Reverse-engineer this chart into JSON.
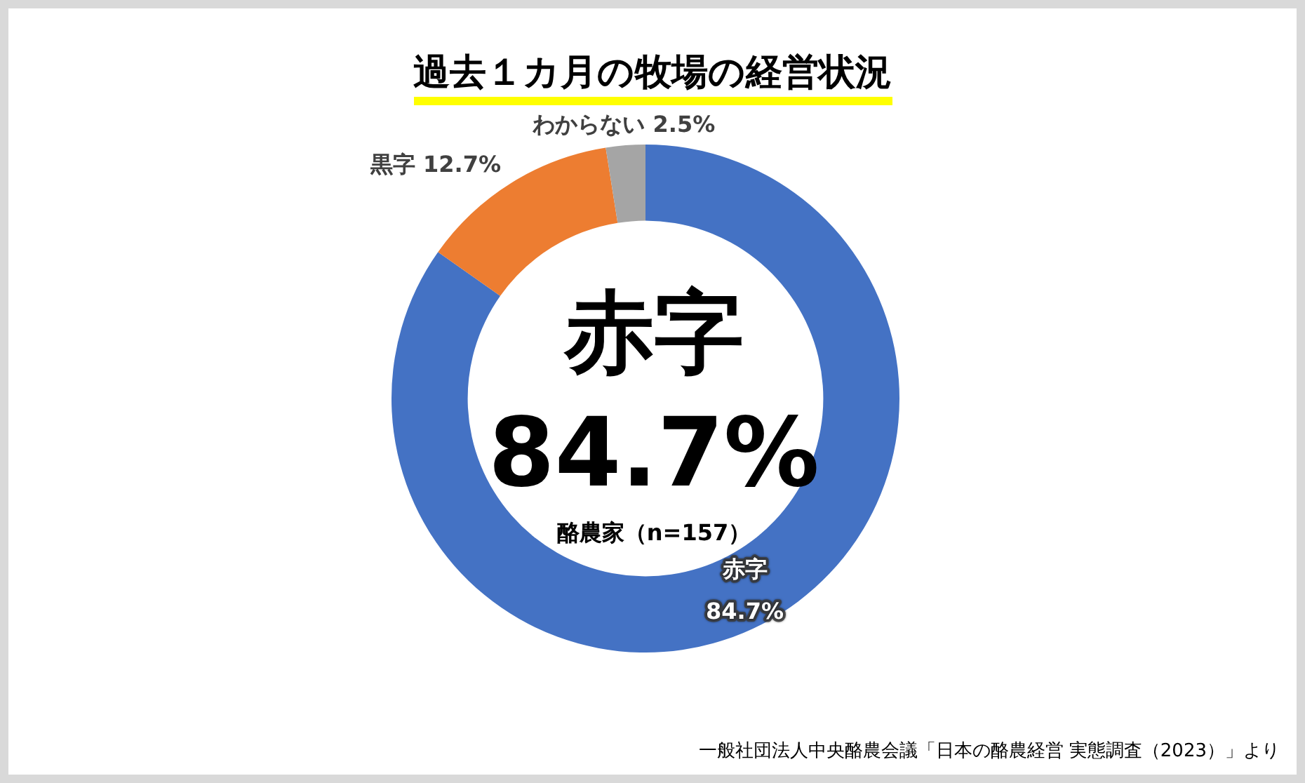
{
  "chart_data": {
    "type": "donut",
    "title": "過去１カ月の牧場の経営状況",
    "categories": [
      "赤字",
      "黒字",
      "わからない"
    ],
    "values": [
      84.7,
      12.7,
      2.5
    ],
    "colors": [
      "#4472c4",
      "#ed7d31",
      "#a5a5a5"
    ],
    "value_labels": [
      "84.7%",
      "12.7%",
      "2.5%"
    ],
    "legend": false,
    "annotations": [
      "赤字",
      "84.7%",
      "酪農家（n=157）",
      "一般社団法人中央酪農会議「日本の酪農経営 実態調査（2023）」より"
    ]
  }
}
